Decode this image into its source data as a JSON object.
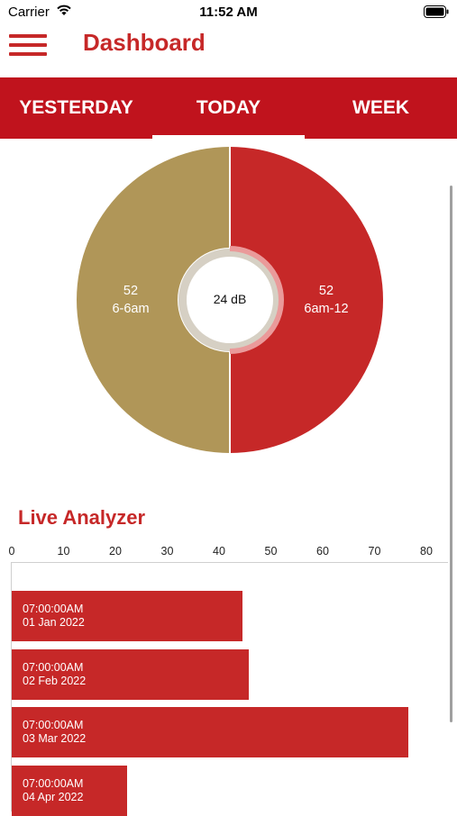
{
  "status_bar": {
    "carrier": "Carrier",
    "time": "11:52 AM"
  },
  "nav": {
    "title": "Dashboard"
  },
  "tabs": [
    {
      "label": "YESTERDAY",
      "active": false
    },
    {
      "label": "TODAY",
      "active": true
    },
    {
      "label": "WEEK",
      "active": false
    }
  ],
  "donut": {
    "center_label": "24 dB",
    "slices": [
      {
        "value": "52",
        "label": "6am-12",
        "color": "#c62828"
      },
      {
        "value": "52",
        "label": "6-6am",
        "color": "#b09658"
      }
    ]
  },
  "live_analyzer": {
    "title": "Live Analyzer"
  },
  "chart_data": {
    "type": "bar",
    "orientation": "horizontal",
    "xlim": [
      0,
      80
    ],
    "x_ticks": [
      "0",
      "10",
      "20",
      "30",
      "40",
      "50",
      "60",
      "70",
      "80"
    ],
    "bars": [
      {
        "time": "07:00:00AM",
        "date": "01 Jan 2022",
        "value": 44.5
      },
      {
        "time": "07:00:00AM",
        "date": "02 Feb 2022",
        "value": 45.7
      },
      {
        "time": "07:00:00AM",
        "date": "03 Mar 2022",
        "value": 76.5
      },
      {
        "time": "07:00:00AM",
        "date": "04 Apr 2022",
        "value": 22.3
      }
    ],
    "color": "#c62828"
  }
}
